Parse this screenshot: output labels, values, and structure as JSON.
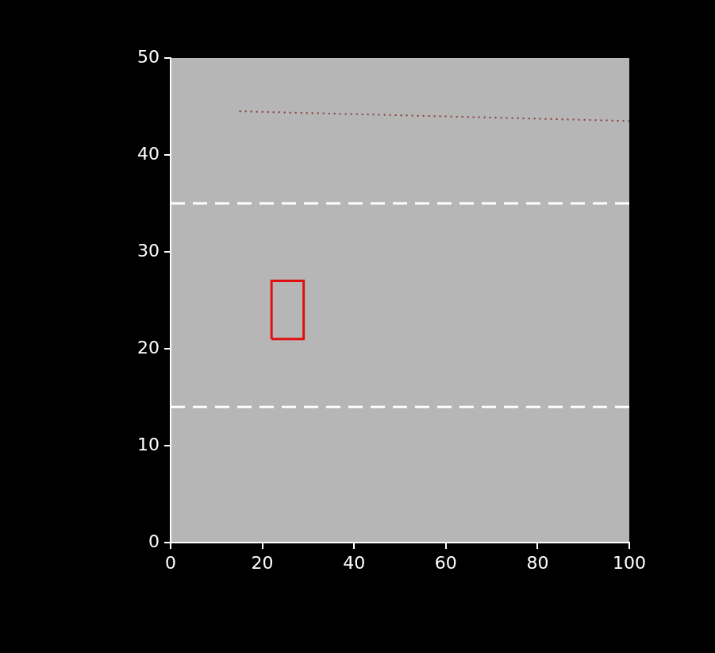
{
  "chart_data": {
    "type": "line",
    "xlim": [
      0,
      100
    ],
    "ylim": [
      0,
      50
    ],
    "xticks": [
      0,
      20,
      40,
      60,
      80,
      100
    ],
    "yticks": [
      0,
      10,
      20,
      30,
      40,
      50
    ],
    "grid": false,
    "series": [
      {
        "color": "#ffffff",
        "line_style": "dashed",
        "x": [
          0,
          100
        ],
        "values": [
          35,
          35
        ]
      },
      {
        "color": "#ffffff",
        "line_style": "dashed",
        "x": [
          0,
          100
        ],
        "values": [
          14,
          14
        ]
      },
      {
        "color": "#8b3a3a",
        "line_style": "dotted",
        "x": [
          15,
          100
        ],
        "values": [
          44.5,
          43.5
        ]
      },
      {
        "color": "#e01010",
        "line_style": "solid",
        "x": [
          22,
          29,
          29,
          22,
          22
        ],
        "values": [
          21,
          21,
          27,
          27,
          21
        ]
      }
    ]
  }
}
